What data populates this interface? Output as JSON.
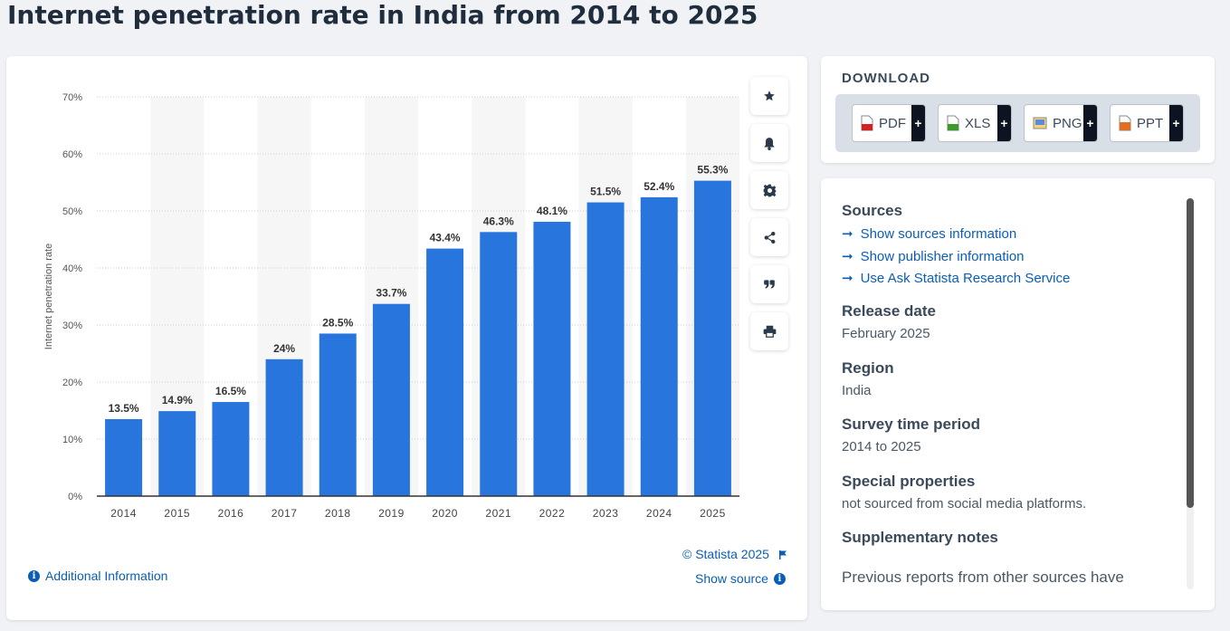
{
  "page": {
    "title": "Internet penetration rate in India from 2014 to 2025"
  },
  "chart_data": {
    "type": "bar",
    "categories": [
      "2014",
      "2015",
      "2016",
      "2017",
      "2018",
      "2019",
      "2020",
      "2021",
      "2022",
      "2023",
      "2024",
      "2025"
    ],
    "values": [
      13.5,
      14.9,
      16.5,
      24,
      28.5,
      33.7,
      43.4,
      46.3,
      48.1,
      51.5,
      52.4,
      55.3
    ],
    "value_labels": [
      "13.5%",
      "14.9%",
      "16.5%",
      "24%",
      "28.5%",
      "33.7%",
      "43.4%",
      "46.3%",
      "48.1%",
      "51.5%",
      "52.4%",
      "55.3%"
    ],
    "ylabel": "Internet penetration rate",
    "xlabel": "",
    "ylim": [
      0,
      70
    ],
    "yticks": [
      0,
      10,
      20,
      30,
      40,
      50,
      60,
      70
    ],
    "ytick_labels": [
      "0%",
      "10%",
      "20%",
      "30%",
      "40%",
      "50%",
      "60%",
      "70%"
    ],
    "grid": true,
    "bar_color": "#2876dd"
  },
  "chart_footer": {
    "copyright": "© Statista 2025",
    "show_source": "Show source",
    "additional_info": "Additional Information"
  },
  "toolbar": {
    "icons": [
      "star-icon",
      "bell-icon",
      "gear-icon",
      "share-icon",
      "quote-icon",
      "print-icon"
    ]
  },
  "download": {
    "heading": "DOWNLOAD",
    "buttons": [
      {
        "label": "PDF",
        "color": "#d32222"
      },
      {
        "label": "XLS",
        "color": "#3a9a2a"
      },
      {
        "label": "PNG",
        "color": "#c88a1a"
      },
      {
        "label": "PPT",
        "color": "#e07020"
      }
    ],
    "plus": "+"
  },
  "info": {
    "sources_heading": "Sources",
    "source_links": [
      "Show sources information",
      "Show publisher information",
      "Use Ask Statista Research Service"
    ],
    "release_heading": "Release date",
    "release_value": "February 2025",
    "region_heading": "Region",
    "region_value": "India",
    "survey_heading": "Survey time period",
    "survey_value": "2014 to 2025",
    "special_heading": "Special properties",
    "special_value": "not sourced from social media platforms.",
    "supp_heading": "Supplementary notes",
    "supp_value": "Previous reports from other sources have"
  },
  "colors": {
    "accent": "#0a5fb4",
    "bar": "#2876dd",
    "title": "#1f2d3d"
  }
}
